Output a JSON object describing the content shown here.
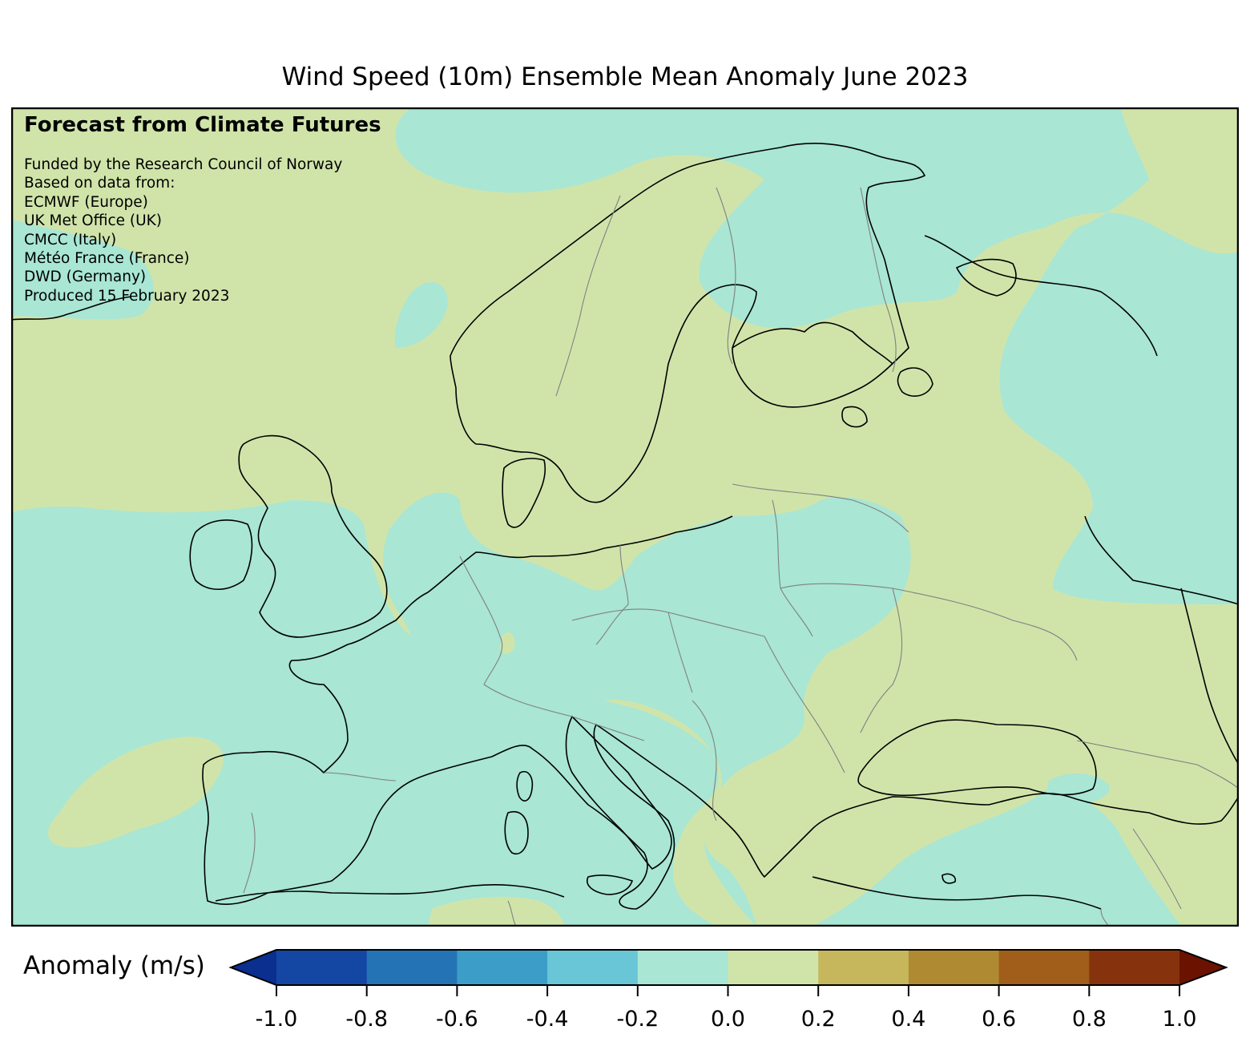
{
  "title": "Wind Speed (10m) Ensemble Mean Anomaly June 2023",
  "overlay": {
    "heading": "Forecast from Climate Futures",
    "credits": [
      "Funded by the Research Council of Norway",
      "Based on data from:",
      "ECMWF (Europe)",
      "UK Met Office (UK)",
      "CMCC (Italy)",
      "Météo France (France)",
      "DWD (Germany)",
      "Produced 15 February 2023"
    ]
  },
  "colorbar": {
    "label": "Anomaly (m/s)",
    "ticks": [
      "-1.0",
      "-0.8",
      "-0.6",
      "-0.4",
      "-0.2",
      "0.0",
      "0.2",
      "0.4",
      "0.6",
      "0.8",
      "1.0"
    ],
    "colors": [
      "#0a2f8f",
      "#1446a3",
      "#2473b5",
      "#3c9ec8",
      "#68c6d6",
      "#a9e6d4",
      "#d0e4aa",
      "#c6b75d",
      "#b08a32",
      "#a05e1a",
      "#86330d",
      "#6b1300"
    ]
  },
  "map": {
    "region": "Europe",
    "colors": {
      "negative_small": "#a9e6d4",
      "positive_small": "#d0e4aa",
      "coast": "#000000",
      "border": "#808080"
    }
  }
}
